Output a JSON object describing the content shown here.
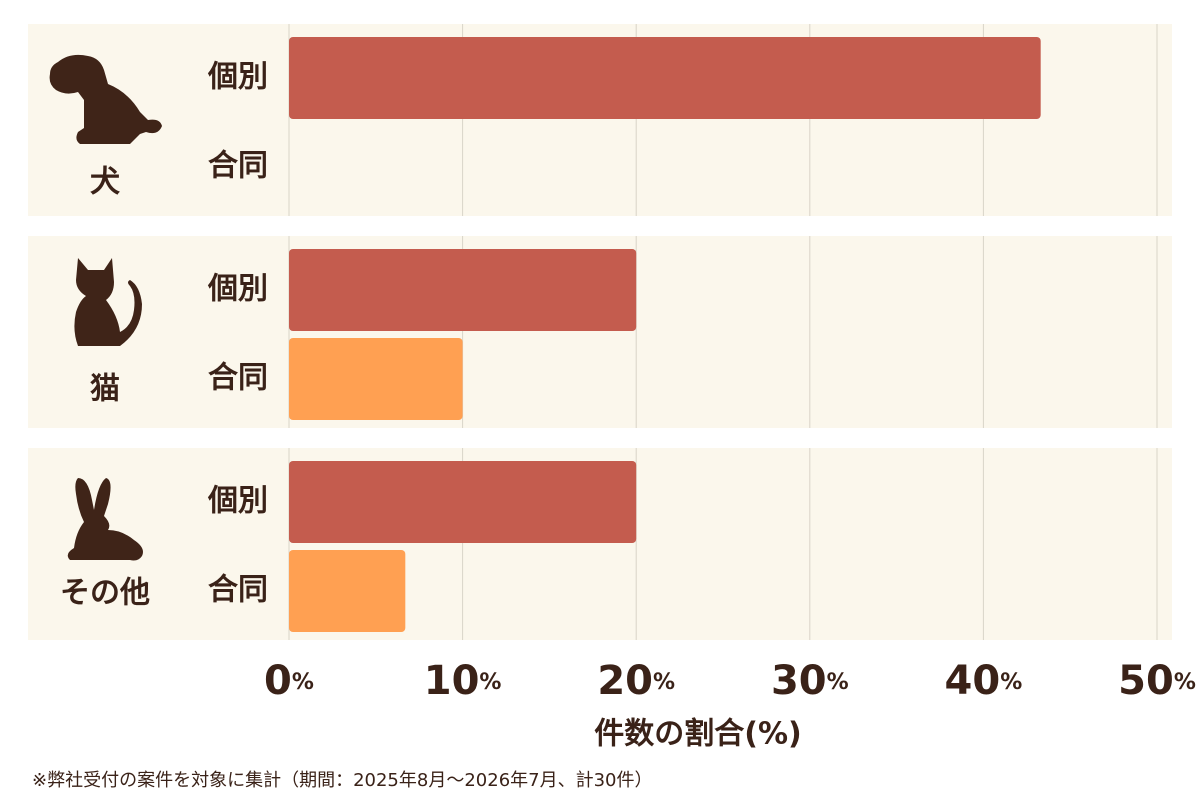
{
  "chart_data": {
    "type": "bar",
    "orientation": "horizontal",
    "categories": [
      "犬",
      "猫",
      "その他"
    ],
    "series": [
      {
        "name": "個別",
        "color": "#c45c4e",
        "values": [
          43.3,
          20,
          20
        ]
      },
      {
        "name": "合同",
        "color": "#ffa052",
        "values": [
          0,
          10,
          6.7
        ]
      }
    ],
    "xlim": [
      0,
      50
    ],
    "xticks": [
      {
        "value": 0,
        "label": "0%"
      },
      {
        "value": 10,
        "label": "10%"
      },
      {
        "value": 20,
        "label": "20%"
      },
      {
        "value": 30,
        "label": "30%"
      },
      {
        "value": 40,
        "label": "40%"
      },
      {
        "value": 50,
        "label": "50%"
      }
    ],
    "xlabel": "件数の割合(%)",
    "grid": true,
    "footnote": "※弊社受付の案件を対象に集計（期間：2025年8月〜2026年7月、計30件）"
  }
}
